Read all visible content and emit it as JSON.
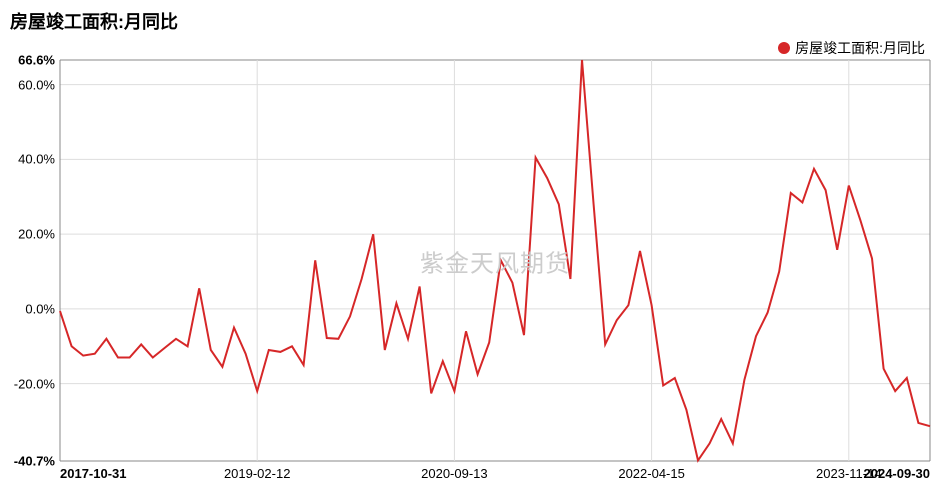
{
  "chart": {
    "type": "line",
    "title": "房屋竣工面积:月同比",
    "title_fontsize": 18,
    "title_fontweight": "bold",
    "title_color": "#000000",
    "watermark": "紫金天风期货",
    "watermark_color": "#cccccc",
    "watermark_fontsize": 24,
    "background_color": "#ffffff",
    "grid_color": "#dddddd",
    "border_color": "#888888",
    "legend": {
      "position": "top-right",
      "items": [
        {
          "label": "房屋竣工面积:月同比",
          "color": "#d62728",
          "marker": "circle"
        }
      ],
      "fontsize": 14
    },
    "y_axis": {
      "min": -40.7,
      "max": 66.6,
      "ticks": [
        {
          "value": -40.7,
          "label": "-40.7%",
          "bold": true
        },
        {
          "value": -20.0,
          "label": "-20.0%",
          "bold": false
        },
        {
          "value": 0.0,
          "label": "0.0%",
          "bold": false
        },
        {
          "value": 20.0,
          "label": "20.0%",
          "bold": false
        },
        {
          "value": 40.0,
          "label": "40.0%",
          "bold": false
        },
        {
          "value": 60.0,
          "label": "60.0%",
          "bold": false
        },
        {
          "value": 66.6,
          "label": "66.6%",
          "bold": true
        }
      ],
      "tick_fontsize": 13,
      "tick_color": "#000000"
    },
    "x_axis": {
      "min": 0,
      "max": 75,
      "ticks": [
        {
          "index": 0,
          "label": "2017-10-31",
          "bold": true
        },
        {
          "index": 17,
          "label": "2019-02-12",
          "bold": false
        },
        {
          "index": 34,
          "label": "2020-09-13",
          "bold": false
        },
        {
          "index": 51,
          "label": "2022-04-15",
          "bold": false
        },
        {
          "index": 68,
          "label": "2023-11-14",
          "bold": false
        },
        {
          "index": 75,
          "label": "2024-09-30",
          "bold": true
        }
      ],
      "tick_fontsize": 13,
      "tick_color": "#000000"
    },
    "series": [
      {
        "name": "房屋竣工面积:月同比",
        "color": "#d62728",
        "line_width": 2,
        "values": [
          -0.6,
          -10.0,
          -12.5,
          -12.0,
          -8.0,
          -13.0,
          -13.0,
          -9.5,
          -13.0,
          -10.5,
          -8.0,
          -10.0,
          5.5,
          -11.0,
          -15.5,
          -5.0,
          -12.0,
          -22.0,
          -11.0,
          -11.5,
          -10.0,
          -15.0,
          13.0,
          -7.8,
          -8.0,
          -2.0,
          8.0,
          20.0,
          -11.0,
          1.5,
          -8.0,
          6.0,
          -22.6,
          -14.0,
          -22.0,
          -6.0,
          -17.5,
          -9.0,
          13.0,
          7.0,
          -7.0,
          40.5,
          35.0,
          28.0,
          8.0,
          66.6,
          28.0,
          -9.5,
          -3.0,
          1.0,
          15.5,
          1.0,
          -20.5,
          -18.5,
          -27.0,
          -40.55,
          -36.0,
          -29.5,
          -36.0,
          -19.0,
          -7.3,
          -1.0,
          10.0,
          31.0,
          28.5,
          37.5,
          31.8,
          15.8,
          33.0,
          23.7,
          13.5,
          -16.0,
          -22.0,
          -18.5,
          -30.5,
          -31.4
        ]
      }
    ]
  }
}
